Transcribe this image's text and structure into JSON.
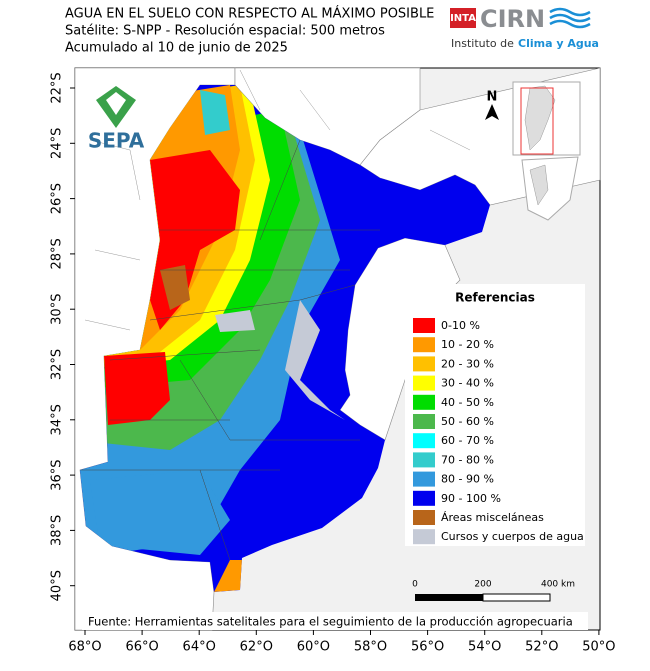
{
  "header": {
    "title_lines": [
      "AGUA EN EL SUELO CON RESPECTO AL MÁXIMO POSIBLE",
      "Satélite: S-NPP - Resolución espacial: 500 metros",
      "Acumulado al 10 de junio de 2025"
    ]
  },
  "logos": {
    "inta": "INTA",
    "cirn": "CIRN",
    "institute": "Instituto de",
    "institute_highlight": "Clima y Agua",
    "sepa": "SEPA"
  },
  "map": {
    "north": "N",
    "lat_labels": [
      "22°S",
      "24°S",
      "26°S",
      "28°S",
      "30°S",
      "32°S",
      "34°S",
      "36°S",
      "38°S",
      "40°S"
    ],
    "lon_labels": [
      "68°O",
      "66°O",
      "64°O",
      "62°O",
      "60°O",
      "58°O",
      "56°O",
      "54°O",
      "52°O",
      "50°O"
    ]
  },
  "legend": {
    "title": "Referencias",
    "items": [
      {
        "label": "0-10 %",
        "color": "#ff0000"
      },
      {
        "label": "10 - 20 %",
        "color": "#ff9900"
      },
      {
        "label": "20 - 30 %",
        "color": "#ffc000"
      },
      {
        "label": "30 - 40 %",
        "color": "#ffff00"
      },
      {
        "label": "40 - 50 %",
        "color": "#00dd00"
      },
      {
        "label": "50 - 60 %",
        "color": "#4cb84c"
      },
      {
        "label": "60 - 70 %",
        "color": "#00ffff"
      },
      {
        "label": "70 - 80 %",
        "color": "#33cccc"
      },
      {
        "label": "80 - 90 %",
        "color": "#3399dd"
      },
      {
        "label": "90 - 100 %",
        "color": "#0000ee"
      },
      {
        "label": "Áreas misceláneas",
        "color": "#b8651a"
      },
      {
        "label": "Cursos y cuerpos de agua",
        "color": "#c5cad6"
      }
    ]
  },
  "scale": {
    "labels": [
      "0",
      "200",
      "400 km"
    ]
  },
  "source": "Fuente: Herramientas satelitales para el seguimiento de la producción agropecuaria"
}
